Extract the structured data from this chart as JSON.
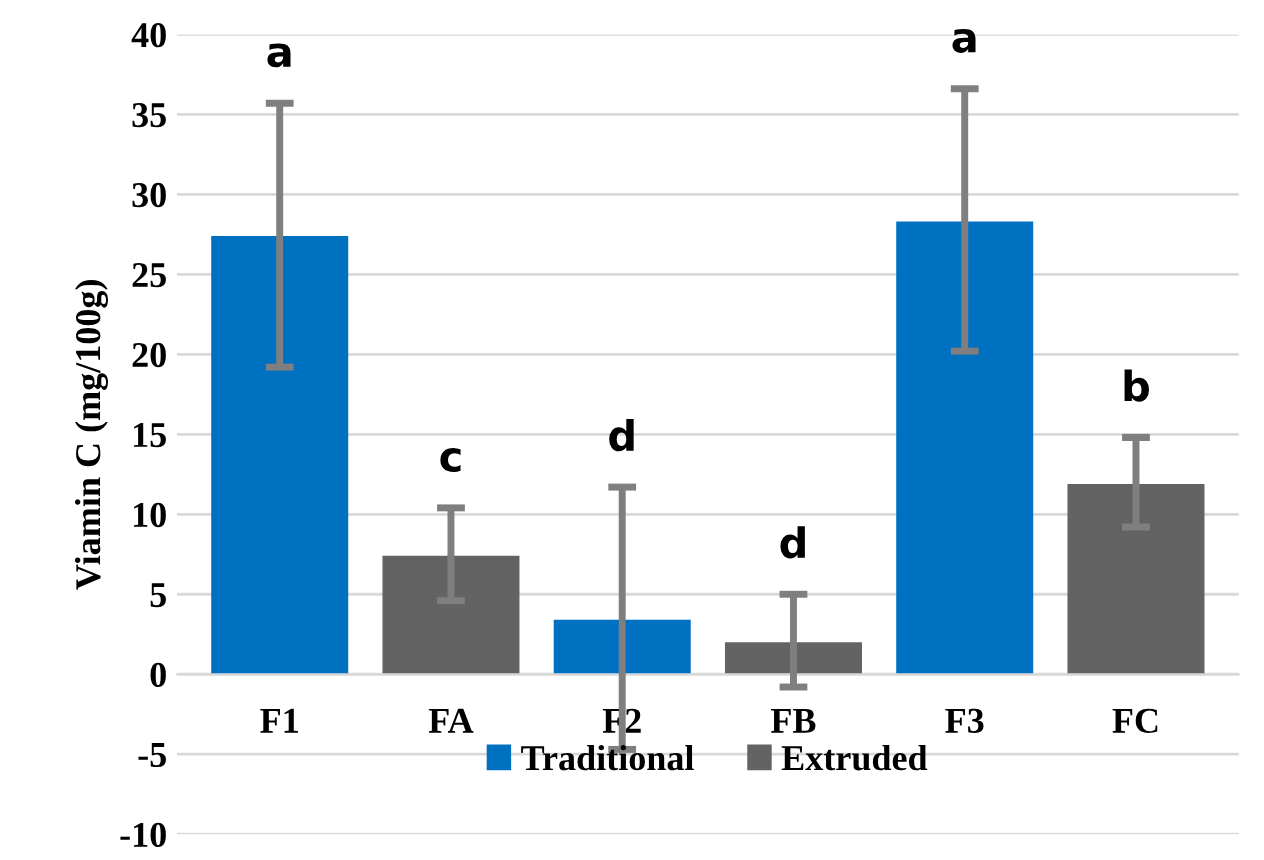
{
  "chart_data": {
    "type": "bar",
    "ylabel": "Viamin C (mg/100g)",
    "categories": [
      "F1",
      "FA",
      "F2",
      "FB",
      "F3",
      "FC"
    ],
    "series": [
      {
        "name": "Traditional",
        "color": "#0070c0",
        "values": [
          27.4,
          null,
          3.4,
          null,
          28.3,
          null
        ],
        "errors": [
          [
            19.2,
            35.7
          ],
          null,
          [
            -4.7,
            11.7
          ],
          null,
          [
            20.2,
            36.6
          ],
          null
        ]
      },
      {
        "name": "Extruded",
        "color": "#636363",
        "values": [
          null,
          7.4,
          null,
          2.0,
          null,
          11.9
        ],
        "errors": [
          null,
          [
            4.6,
            10.4
          ],
          null,
          [
            -0.8,
            5.0
          ],
          null,
          [
            9.2,
            14.8
          ]
        ]
      }
    ],
    "ylim": [
      -10,
      40
    ],
    "yticks": [
      -10,
      -5,
      0,
      5,
      10,
      15,
      20,
      25,
      30,
      35,
      40
    ],
    "grid": "y",
    "legend": "bottom",
    "annotations": [
      {
        "text": "a",
        "x": "F1",
        "y": 35.7
      },
      {
        "text": "c",
        "x": "FA",
        "y": 10.4
      },
      {
        "text": "d",
        "x": "F2",
        "y": 11.7
      },
      {
        "text": "d",
        "x": "FB",
        "y": 5.0
      },
      {
        "text": "a",
        "x": "F3",
        "y": 36.6
      },
      {
        "text": "b",
        "x": "FC",
        "y": 14.8
      }
    ]
  }
}
